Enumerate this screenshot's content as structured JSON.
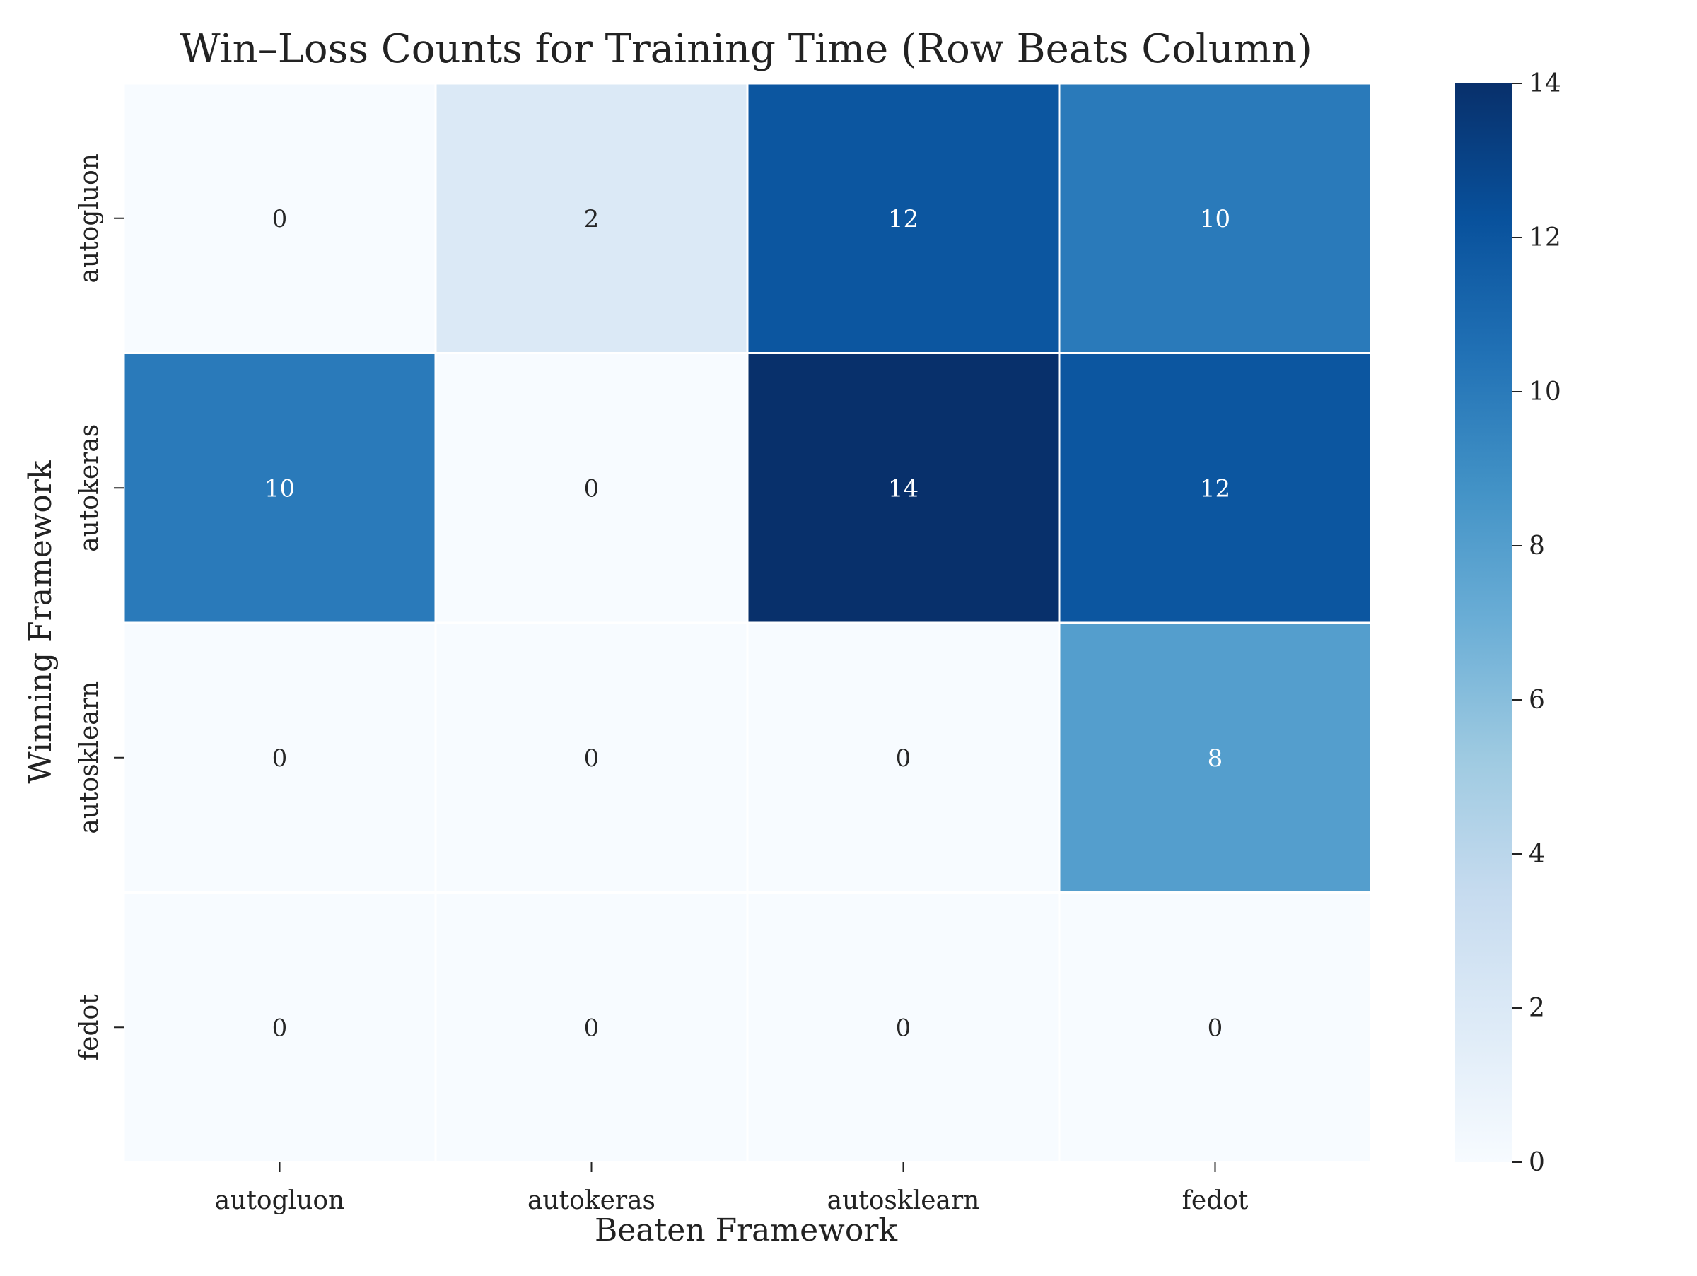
{
  "chart_data": {
    "type": "heatmap",
    "title": "Win–Loss Counts for Training Time (Row Beats Column)",
    "xlabel": "Beaten Framework",
    "ylabel": "Winning Framework",
    "x_categories": [
      "autogluon",
      "autokeras",
      "autosklearn",
      "fedot"
    ],
    "y_categories": [
      "autogluon",
      "autokeras",
      "autosklearn",
      "fedot"
    ],
    "values": [
      [
        0,
        2,
        12,
        10
      ],
      [
        10,
        0,
        14,
        12
      ],
      [
        0,
        0,
        0,
        8
      ],
      [
        0,
        0,
        0,
        0
      ]
    ],
    "colorbar": {
      "range": [
        0,
        14
      ],
      "ticks": [
        0,
        2,
        4,
        6,
        8,
        10,
        12,
        14
      ],
      "colormap": "Blues"
    },
    "annotations": true,
    "grid": false,
    "colors": {
      "colormap_stops": [
        "#f7fbff",
        "#deebf7",
        "#c6dbef",
        "#9ecae1",
        "#6baed6",
        "#4292c6",
        "#2171b5",
        "#08519c",
        "#08306b"
      ],
      "cell_border": "#ffffff",
      "light_text": "#ffffff",
      "dark_text": "#262626"
    }
  }
}
